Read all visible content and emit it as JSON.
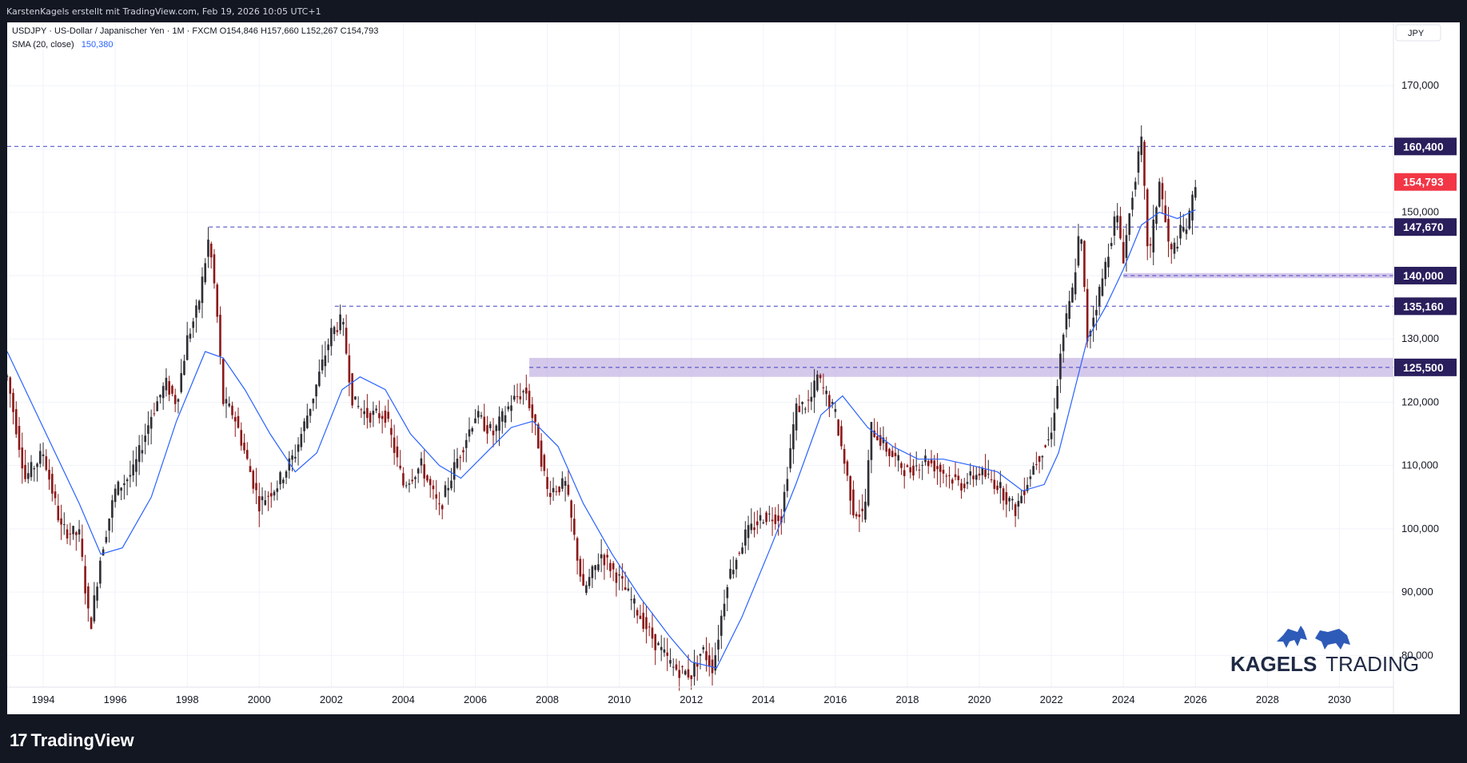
{
  "header": {
    "credit": "KarstenKagels erstellt mit TradingView.com, Feb 19, 2026 10:05 UTC+1"
  },
  "legend": {
    "symbol_line": "USDJPY · US-Dollar / Japanischer Yen · 1M · FXCM  O154,846  H157,660  L152,267  C154,793",
    "sma_label": "SMA (20, close)",
    "sma_value": "150,380"
  },
  "currency_label": "JPY",
  "footer": {
    "brand": "TradingView",
    "brand_icon": "tradingview-logo-icon"
  },
  "watermark": {
    "text_bold": "KAGELS",
    "text_light": "TRADING",
    "icons": [
      "bull-icon",
      "bear-icon"
    ]
  },
  "colors": {
    "candle_up": "#2f2f35",
    "candle_down": "#8b1a1a",
    "sma_line": "#2962ff",
    "level_line": "#3f3fbf",
    "level_label_bg": "#2a1e5c",
    "price_label_bg": "#f23645",
    "zone_fill": "#b39ddb"
  },
  "chart_data": {
    "type": "candlestick",
    "title": "USDJPY · US-Dollar / Japanischer Yen · 1M · FXCM",
    "timeframe": "1M",
    "x_range": [
      1993.0,
      2031.5
    ],
    "y_range": [
      75,
      180
    ],
    "y_axis_side": "right",
    "x_ticks": [
      "1994",
      "1996",
      "1998",
      "2000",
      "2002",
      "2004",
      "2006",
      "2008",
      "2010",
      "2012",
      "2014",
      "2016",
      "2018",
      "2020",
      "2022",
      "2024",
      "2026",
      "2028",
      "2030"
    ],
    "y_ticks": [
      80,
      90,
      100,
      110,
      120,
      130,
      140,
      150,
      160,
      170
    ],
    "y_tick_labels": [
      "80,000",
      "90,000",
      "100,000",
      "110,000",
      "120,000",
      "130,000",
      "140,000",
      "150,000",
      "160,000",
      "170,000"
    ],
    "grid": true,
    "last_candle": {
      "open": 154.846,
      "high": 157.66,
      "low": 152.267,
      "close": 154.793
    },
    "current_price_label": "154,793",
    "levels": [
      {
        "value": 160.4,
        "label": "160,400",
        "from_year": 1993.0
      },
      {
        "value": 147.67,
        "label": "147,670",
        "from_year": 1998.6
      },
      {
        "value": 140.0,
        "label": "140,000",
        "from_year": 2024.0
      },
      {
        "value": 135.16,
        "label": "135,160",
        "from_year": 2002.1
      },
      {
        "value": 125.5,
        "label": "125,500",
        "from_year": 2007.5
      }
    ],
    "zones": [
      {
        "from_year": 2007.5,
        "low": 124.0,
        "high": 127.0
      },
      {
        "from_year": 2024.0,
        "low": 139.6,
        "high": 140.4
      }
    ],
    "series": [
      {
        "name": "USDJPY",
        "points": [
          [
            1993.0,
            124
          ],
          [
            1993.5,
            108
          ],
          [
            1994.0,
            112
          ],
          [
            1994.5,
            100
          ],
          [
            1995.0,
            99
          ],
          [
            1995.3,
            84
          ],
          [
            1995.6,
            96
          ],
          [
            1996.0,
            106
          ],
          [
            1996.5,
            109
          ],
          [
            1997.0,
            118
          ],
          [
            1997.4,
            123
          ],
          [
            1997.7,
            120
          ],
          [
            1998.0,
            130
          ],
          [
            1998.3,
            135
          ],
          [
            1998.6,
            146
          ],
          [
            1998.8,
            136
          ],
          [
            1999.0,
            120
          ],
          [
            1999.3,
            118
          ],
          [
            1999.7,
            110
          ],
          [
            2000.0,
            104
          ],
          [
            2000.5,
            107
          ],
          [
            2001.0,
            112
          ],
          [
            2001.5,
            121
          ],
          [
            2002.0,
            131
          ],
          [
            2002.3,
            133
          ],
          [
            2002.6,
            120
          ],
          [
            2003.0,
            118
          ],
          [
            2003.5,
            118
          ],
          [
            2004.0,
            107
          ],
          [
            2004.5,
            110
          ],
          [
            2005.0,
            103
          ],
          [
            2005.5,
            111
          ],
          [
            2006.0,
            118
          ],
          [
            2006.5,
            115
          ],
          [
            2007.0,
            120
          ],
          [
            2007.4,
            122
          ],
          [
            2007.7,
            115
          ],
          [
            2008.0,
            106
          ],
          [
            2008.5,
            107
          ],
          [
            2009.0,
            90
          ],
          [
            2009.5,
            96
          ],
          [
            2010.0,
            92
          ],
          [
            2010.5,
            87
          ],
          [
            2011.0,
            82
          ],
          [
            2011.5,
            78
          ],
          [
            2012.0,
            77
          ],
          [
            2012.3,
            81
          ],
          [
            2012.6,
            78
          ],
          [
            2013.0,
            92
          ],
          [
            2013.5,
            99
          ],
          [
            2014.0,
            102
          ],
          [
            2014.5,
            102
          ],
          [
            2014.9,
            119
          ],
          [
            2015.3,
            120
          ],
          [
            2015.5,
            124
          ],
          [
            2016.0,
            118
          ],
          [
            2016.5,
            103
          ],
          [
            2016.8,
            102
          ],
          [
            2017.0,
            116
          ],
          [
            2017.5,
            112
          ],
          [
            2018.0,
            109
          ],
          [
            2018.5,
            111
          ],
          [
            2019.0,
            109
          ],
          [
            2019.5,
            107
          ],
          [
            2020.0,
            109
          ],
          [
            2020.5,
            107
          ],
          [
            2021.0,
            103
          ],
          [
            2021.5,
            110
          ],
          [
            2022.0,
            115
          ],
          [
            2022.3,
            130
          ],
          [
            2022.6,
            138
          ],
          [
            2022.8,
            148
          ],
          [
            2023.0,
            130
          ],
          [
            2023.4,
            139
          ],
          [
            2023.8,
            150
          ],
          [
            2024.0,
            143
          ],
          [
            2024.3,
            155
          ],
          [
            2024.5,
            161
          ],
          [
            2024.7,
            142
          ],
          [
            2025.0,
            155
          ],
          [
            2025.3,
            143
          ],
          [
            2025.6,
            147
          ],
          [
            2025.8,
            148
          ],
          [
            2026.0,
            155
          ]
        ]
      },
      {
        "name": "SMA (20, close)",
        "points": [
          [
            1993.0,
            128
          ],
          [
            1994.0,
            116
          ],
          [
            1995.0,
            104
          ],
          [
            1995.6,
            96
          ],
          [
            1996.2,
            97
          ],
          [
            1997.0,
            105
          ],
          [
            1997.7,
            117
          ],
          [
            1998.5,
            128
          ],
          [
            1999.0,
            127
          ],
          [
            1999.6,
            122
          ],
          [
            2000.3,
            115
          ],
          [
            2001.0,
            109
          ],
          [
            2001.6,
            112
          ],
          [
            2002.3,
            122
          ],
          [
            2002.8,
            124
          ],
          [
            2003.5,
            122
          ],
          [
            2004.2,
            115
          ],
          [
            2005.0,
            110
          ],
          [
            2005.6,
            108
          ],
          [
            2006.3,
            112
          ],
          [
            2007.0,
            116
          ],
          [
            2007.6,
            117
          ],
          [
            2008.3,
            113
          ],
          [
            2009.0,
            104
          ],
          [
            2009.8,
            96
          ],
          [
            2010.6,
            89
          ],
          [
            2011.4,
            83
          ],
          [
            2012.0,
            79
          ],
          [
            2012.7,
            78
          ],
          [
            2013.4,
            86
          ],
          [
            2014.2,
            97
          ],
          [
            2014.9,
            107
          ],
          [
            2015.6,
            118
          ],
          [
            2016.2,
            121
          ],
          [
            2016.9,
            116
          ],
          [
            2017.6,
            113
          ],
          [
            2018.3,
            111
          ],
          [
            2019.0,
            111
          ],
          [
            2019.8,
            110
          ],
          [
            2020.5,
            109
          ],
          [
            2021.2,
            106
          ],
          [
            2021.8,
            107
          ],
          [
            2022.2,
            112
          ],
          [
            2022.6,
            121
          ],
          [
            2023.0,
            130
          ],
          [
            2023.5,
            135
          ],
          [
            2024.0,
            141
          ],
          [
            2024.5,
            148
          ],
          [
            2025.0,
            150
          ],
          [
            2025.5,
            149
          ],
          [
            2026.0,
            150.38
          ]
        ]
      }
    ]
  }
}
